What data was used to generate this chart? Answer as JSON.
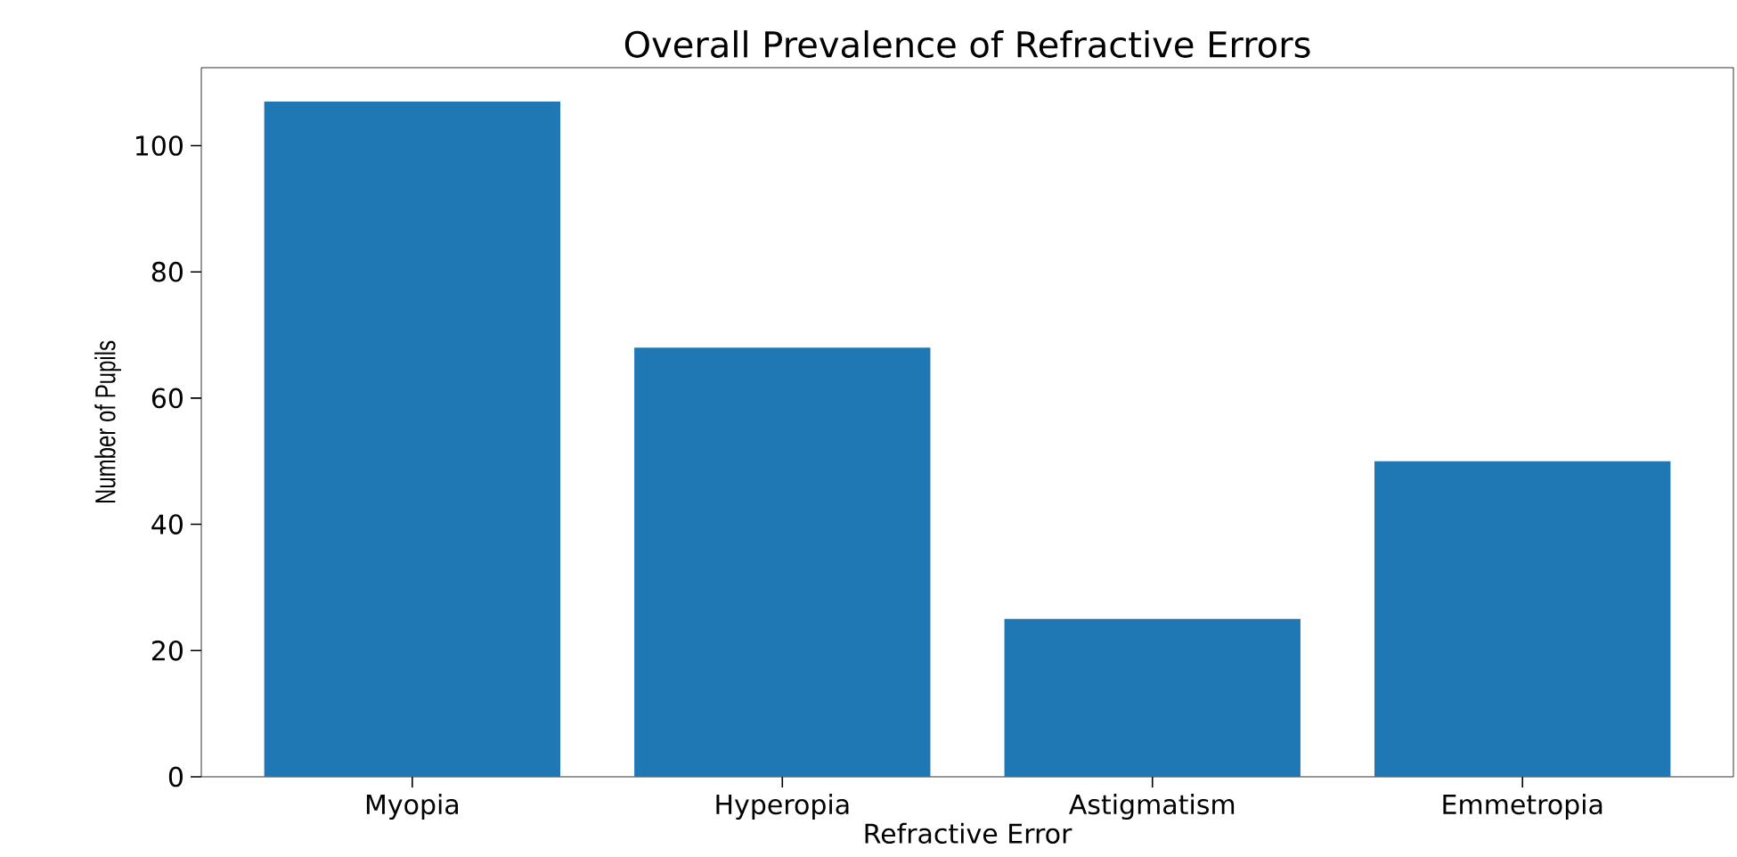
{
  "chart_data": {
    "type": "bar",
    "title": "Overall Prevalence of Refractive Errors",
    "xlabel": "Refractive Error",
    "ylabel": "Number of Pupils",
    "categories": [
      "Myopia",
      "Hyperopia",
      "Astigmatism",
      "Emmetropia"
    ],
    "values": [
      107,
      68,
      25,
      50
    ],
    "color": "#1f77b4",
    "ylim": [
      0,
      112.35
    ],
    "yticks": [
      0,
      20,
      40,
      60,
      80,
      100
    ],
    "grid": false
  }
}
